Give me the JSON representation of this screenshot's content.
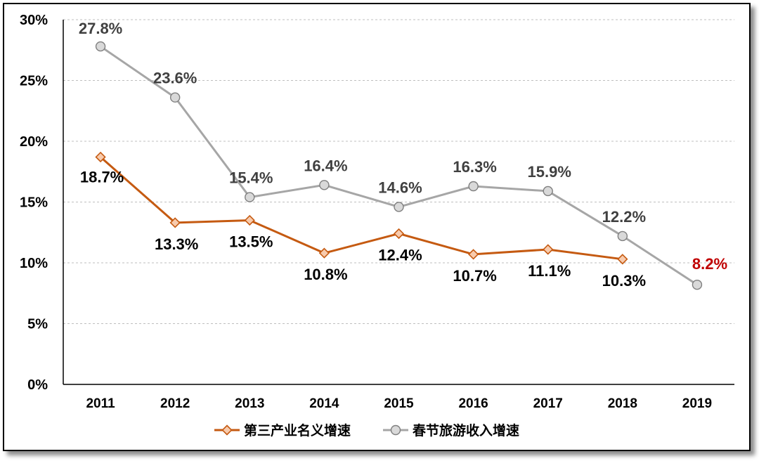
{
  "chart_data": {
    "type": "line",
    "categories": [
      "2011",
      "2012",
      "2013",
      "2014",
      "2015",
      "2016",
      "2017",
      "2018",
      "2019"
    ],
    "y_ticks": [
      "0%",
      "5%",
      "10%",
      "15%",
      "20%",
      "25%",
      "30%"
    ],
    "ylim": [
      0,
      30
    ],
    "grid": true,
    "legend_position": "bottom",
    "series": [
      {
        "name": "第三产业名义增速",
        "color": "#C55A11",
        "marker": "diamond",
        "marker_fill": "#F8CBAD",
        "values": [
          18.7,
          13.3,
          13.5,
          10.8,
          12.4,
          10.7,
          11.1,
          10.3,
          null
        ],
        "labels": [
          "18.7%",
          "13.3%",
          "13.5%",
          "10.8%",
          "12.4%",
          "10.7%",
          "11.1%",
          "10.3%",
          ""
        ]
      },
      {
        "name": "春节旅游收入增速",
        "color": "#A6A6A6",
        "marker": "circle",
        "marker_fill": "#D9D9D9",
        "values": [
          27.8,
          23.6,
          15.4,
          16.4,
          14.6,
          16.3,
          15.9,
          12.2,
          8.2
        ],
        "labels": [
          "27.8%",
          "23.6%",
          "15.4%",
          "16.4%",
          "14.6%",
          "16.3%",
          "15.9%",
          "12.2%",
          "8.2%"
        ],
        "highlight_index": 8,
        "highlight_color": "#C00000"
      }
    ]
  }
}
